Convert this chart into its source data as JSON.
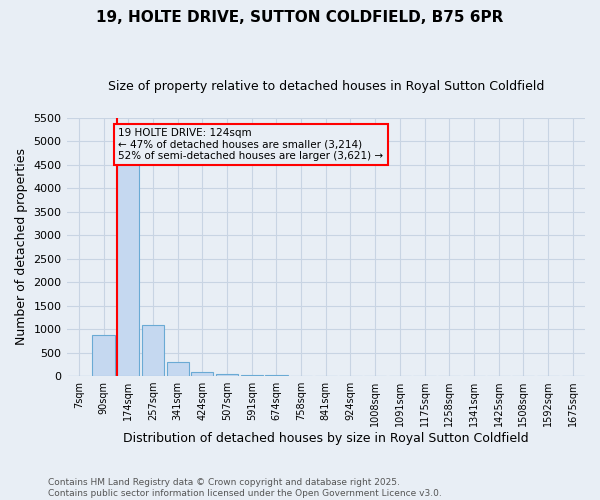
{
  "title": "19, HOLTE DRIVE, SUTTON COLDFIELD, B75 6PR",
  "subtitle": "Size of property relative to detached houses in Royal Sutton Coldfield",
  "xlabel": "Distribution of detached houses by size in Royal Sutton Coldfield",
  "ylabel": "Number of detached properties",
  "categories": [
    "7sqm",
    "90sqm",
    "174sqm",
    "257sqm",
    "341sqm",
    "424sqm",
    "507sqm",
    "591sqm",
    "674sqm",
    "758sqm",
    "841sqm",
    "924sqm",
    "1008sqm",
    "1091sqm",
    "1175sqm",
    "1258sqm",
    "1341sqm",
    "1425sqm",
    "1508sqm",
    "1592sqm",
    "1675sqm"
  ],
  "values": [
    0,
    880,
    4620,
    1080,
    290,
    90,
    50,
    30,
    20,
    0,
    0,
    0,
    0,
    0,
    0,
    0,
    0,
    0,
    0,
    0,
    0
  ],
  "bar_color": "#c5d8f0",
  "bar_edgecolor": "#6aaad4",
  "ylim": [
    0,
    5500
  ],
  "yticks": [
    0,
    500,
    1000,
    1500,
    2000,
    2500,
    3000,
    3500,
    4000,
    4500,
    5000,
    5500
  ],
  "vline_color": "red",
  "vline_x": 1.55,
  "annotation_text": "19 HOLTE DRIVE: 124sqm\n← 47% of detached houses are smaller (3,214)\n52% of semi-detached houses are larger (3,621) →",
  "annotation_box_color": "red",
  "annotation_fontsize": 7.5,
  "bg_color": "#e8eef5",
  "footer": "Contains HM Land Registry data © Crown copyright and database right 2025.\nContains public sector information licensed under the Open Government Licence v3.0.",
  "title_fontsize": 11,
  "subtitle_fontsize": 9,
  "xlabel_fontsize": 9,
  "ylabel_fontsize": 9,
  "grid_color": "#c8d4e3",
  "figsize": [
    6.0,
    5.0
  ],
  "dpi": 100
}
